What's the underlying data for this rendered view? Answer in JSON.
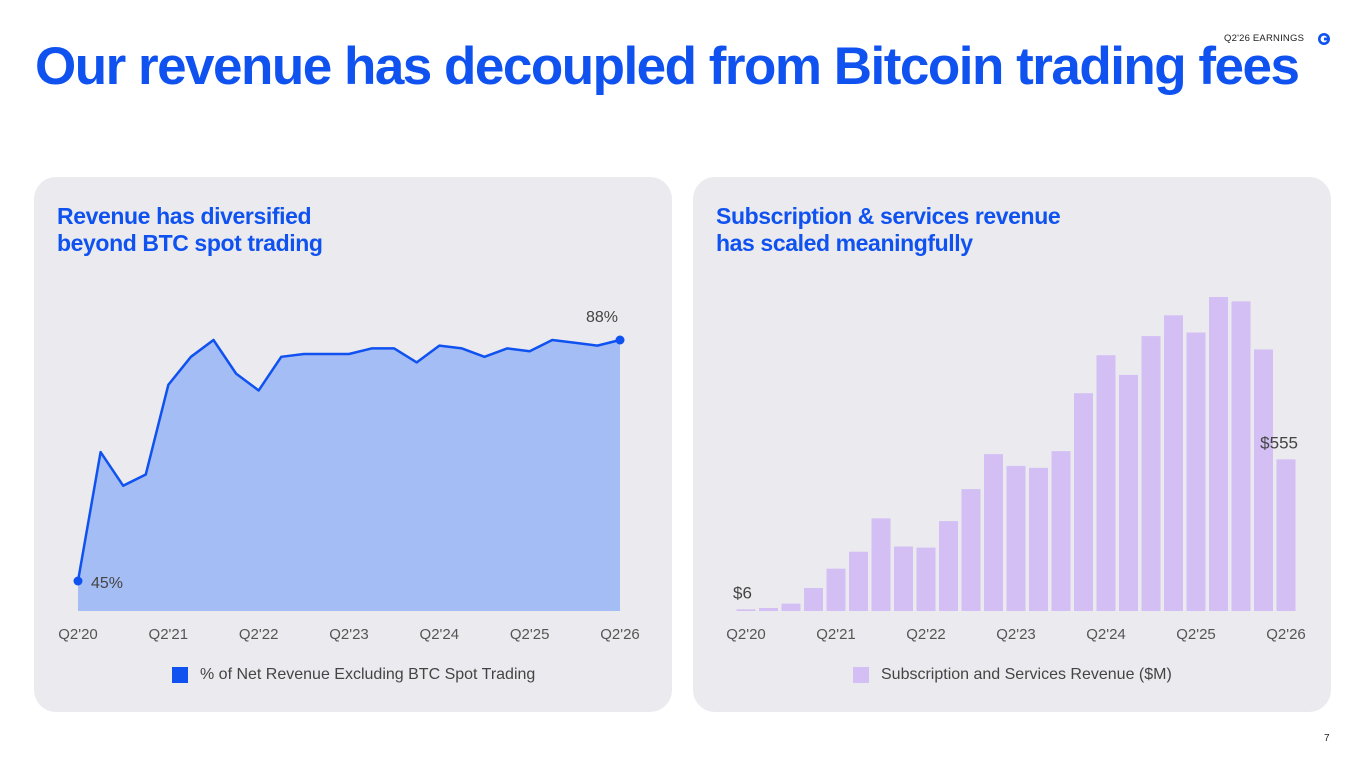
{
  "header": {
    "title": "Our revenue has decoupled from Bitcoin trading fees",
    "report_label": "Q2'26 EARNINGS",
    "page_number": "7"
  },
  "colors": {
    "brand": "#0f52f0",
    "area_fill": "#a5bdf5",
    "bar_fill": "#d3bff4",
    "panel_bg": "#ebebef"
  },
  "left_panel": {
    "title_lines": [
      "Revenue has diversified",
      "beyond BTC spot trading"
    ],
    "legend": "% of Net Revenue Excluding BTC Spot Trading"
  },
  "right_panel": {
    "title_lines": [
      "Subscription & services revenue",
      "has scaled meaningfully"
    ],
    "legend": "Subscription and Services Revenue ($M)"
  },
  "chart_data": [
    {
      "type": "area",
      "series": [
        {
          "name": "% of Net Revenue Excluding BTC Spot Trading",
          "values": [
            45,
            68,
            62,
            64,
            80,
            85,
            88,
            82,
            79,
            85,
            85.5,
            85.5,
            85.5,
            86.5,
            86.5,
            84,
            87,
            86.5,
            85,
            86.5,
            86,
            88,
            87.5,
            87,
            88
          ]
        }
      ],
      "x_tick_labels": [
        "Q2'20",
        "Q2'21",
        "Q2'22",
        "Q2'23",
        "Q2'24",
        "Q2'25",
        "Q2'26"
      ],
      "x_tick_indices": [
        0,
        4,
        8,
        12,
        16,
        20,
        24
      ],
      "data_labels": [
        {
          "index": 0,
          "text": "45%"
        },
        {
          "index": 24,
          "text": "88%"
        }
      ],
      "ylim": [
        40,
        92
      ],
      "grid": false,
      "legend_position": "bottom"
    },
    {
      "type": "bar",
      "series": [
        {
          "name": "Subscription and Services Revenue ($M)",
          "values": [
            6,
            11,
            27,
            84,
            155,
            217,
            339,
            236,
            232,
            329,
            446,
            574,
            531,
            524,
            585,
            797,
            936,
            864,
            1006,
            1082,
            1019,
            1149,
            1133,
            957,
            555
          ]
        }
      ],
      "x_tick_labels": [
        "Q2'20",
        "Q2'21",
        "Q2'22",
        "Q2'23",
        "Q2'24",
        "Q2'25",
        "Q2'26"
      ],
      "x_tick_indices": [
        0,
        4,
        8,
        12,
        16,
        20,
        24
      ],
      "data_labels": [
        {
          "index": 0,
          "text": "$6"
        },
        {
          "index": 24,
          "text": "$555"
        }
      ],
      "grid": false,
      "legend_position": "bottom"
    }
  ]
}
